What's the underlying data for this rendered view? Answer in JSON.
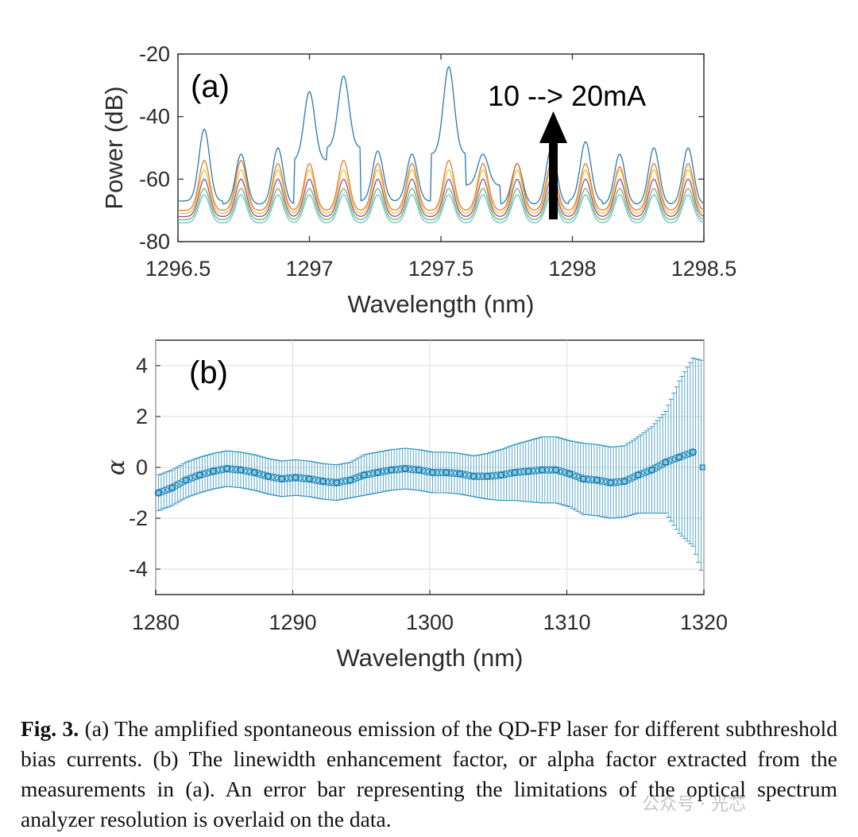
{
  "chart_data": [
    {
      "type": "line",
      "panel_label": "(a)",
      "annotation": "10 --> 20mA",
      "xlabel": "Wavelength (nm)",
      "ylabel": "Power (dB)",
      "xlim": [
        1296.5,
        1298.5
      ],
      "ylim": [
        -80,
        -20
      ],
      "xticks": [
        1296.5,
        1297,
        1297.5,
        1298,
        1298.5
      ],
      "xtick_labels": [
        "1296.5",
        "1297",
        "1297.5",
        "1298",
        "1298.5"
      ],
      "yticks": [
        -20,
        -40,
        -60,
        -80
      ],
      "ytick_labels": [
        "-20",
        "-40",
        "-60",
        "-80"
      ],
      "grid": false,
      "mode_peaks_nm": [
        1296.6,
        1296.74,
        1296.88,
        1297.0,
        1297.13,
        1297.26,
        1297.39,
        1297.53,
        1297.66,
        1297.79,
        1297.92,
        1298.05,
        1298.18,
        1298.31,
        1298.44
      ],
      "series": [
        {
          "color": "#2a78b4",
          "peak": [
            -44,
            -52,
            -50,
            -32,
            -27,
            -51,
            -52,
            -24,
            -52,
            -55,
            -50,
            -48,
            -52,
            -50,
            -50
          ],
          "valley": [
            -67,
            -68,
            -68,
            -54,
            -50,
            -67,
            -67,
            -52,
            -62,
            -68,
            -68,
            -67,
            -68,
            -68,
            -68
          ]
        },
        {
          "color": "#e07b2e",
          "peak": [
            -54,
            -54,
            -55,
            -55,
            -54,
            -55,
            -55,
            -54,
            -55,
            -55,
            -55,
            -55,
            -56,
            -55,
            -55
          ],
          "valley": [
            -70,
            -70,
            -70,
            -70,
            -70,
            -70,
            -70,
            -70,
            -70,
            -70,
            -70,
            -70,
            -70,
            -70,
            -70
          ]
        },
        {
          "color": "#e8c13a",
          "peak": [
            -57,
            -57,
            -57,
            -57,
            -57,
            -57,
            -57,
            -57,
            -57,
            -57,
            -57,
            -57,
            -57,
            -57,
            -57
          ],
          "valley": [
            -71,
            -71,
            -71,
            -71,
            -71,
            -71,
            -71,
            -71,
            -71,
            -71,
            -71,
            -71,
            -71,
            -71,
            -71
          ]
        },
        {
          "color": "#8a4ea3",
          "peak": [
            -60,
            -60,
            -60,
            -60,
            -60,
            -60,
            -60,
            -60,
            -60,
            -60,
            -60,
            -60,
            -60,
            -60,
            -60
          ],
          "valley": [
            -72,
            -72,
            -72,
            -72,
            -72,
            -72,
            -72,
            -72,
            -72,
            -72,
            -72,
            -72,
            -72,
            -72,
            -72
          ]
        },
        {
          "color": "#7fb34a",
          "peak": [
            -63,
            -63,
            -63,
            -63,
            -63,
            -63,
            -63,
            -63,
            -63,
            -63,
            -63,
            -63,
            -63,
            -63,
            -63
          ],
          "valley": [
            -73,
            -73,
            -73,
            -73,
            -73,
            -73,
            -73,
            -73,
            -73,
            -73,
            -73,
            -73,
            -73,
            -73,
            -73
          ]
        },
        {
          "color": "#5fc3de",
          "peak": [
            -65,
            -65,
            -65,
            -65,
            -65,
            -65,
            -65,
            -65,
            -65,
            -65,
            -65,
            -65,
            -65,
            -65,
            -65
          ],
          "valley": [
            -74,
            -74,
            -74,
            -74,
            -74,
            -74,
            -74,
            -74,
            -74,
            -74,
            -74,
            -74,
            -74,
            -74,
            -74
          ]
        }
      ]
    },
    {
      "type": "scatter",
      "panel_label": "(b)",
      "xlabel": "Wavelength (nm)",
      "ylabel": "α",
      "xlim": [
        1280,
        1320
      ],
      "ylim": [
        -5,
        5
      ],
      "xticks": [
        1280,
        1290,
        1300,
        1310,
        1320
      ],
      "xtick_labels": [
        "1280",
        "1290",
        "1300",
        "1310",
        "1320"
      ],
      "yticks": [
        4,
        2,
        0,
        -2,
        -4
      ],
      "ytick_labels": [
        "4",
        "2",
        "0",
        "-2",
        "-4"
      ],
      "grid": true,
      "color": "#2a8fbd",
      "x": [
        1280.2,
        1281.2,
        1282.2,
        1283.2,
        1284.2,
        1285.2,
        1286.2,
        1287.2,
        1288.2,
        1289.2,
        1290.2,
        1291.2,
        1292.2,
        1293.2,
        1294.2,
        1295.2,
        1296.2,
        1297.2,
        1298.2,
        1299.2,
        1300.2,
        1301.2,
        1302.2,
        1303.2,
        1304.2,
        1305.2,
        1306.2,
        1307.2,
        1308.2,
        1309.2,
        1310.2,
        1311.2,
        1312.2,
        1313.2,
        1314.2,
        1315.2,
        1316.2,
        1317.2,
        1318.2,
        1319.2,
        1319.9
      ],
      "y": [
        -1.0,
        -0.8,
        -0.5,
        -0.3,
        -0.15,
        -0.05,
        -0.1,
        -0.2,
        -0.35,
        -0.45,
        -0.4,
        -0.45,
        -0.55,
        -0.6,
        -0.5,
        -0.3,
        -0.2,
        -0.1,
        -0.05,
        -0.1,
        -0.2,
        -0.2,
        -0.25,
        -0.35,
        -0.35,
        -0.3,
        -0.2,
        -0.15,
        -0.1,
        -0.1,
        -0.25,
        -0.45,
        -0.5,
        -0.6,
        -0.55,
        -0.3,
        -0.1,
        0.2,
        0.4,
        0.6,
        0.0
      ],
      "err": [
        0.7,
        0.7,
        0.7,
        0.7,
        0.7,
        0.7,
        0.7,
        0.7,
        0.7,
        0.7,
        0.7,
        0.7,
        0.7,
        0.7,
        0.7,
        0.8,
        0.8,
        0.8,
        0.8,
        0.8,
        0.8,
        0.8,
        0.8,
        0.8,
        0.9,
        1.0,
        1.1,
        1.2,
        1.3,
        1.3,
        1.3,
        1.4,
        1.4,
        1.4,
        1.4,
        1.5,
        1.7,
        2.0,
        3.0,
        3.7,
        4.2
      ]
    }
  ],
  "caption": {
    "label": "Fig. 3.",
    "text": "(a) The amplified spontaneous emission of the QD-FP laser for different subthreshold bias currents. (b) The linewidth enhancement factor, or alpha factor extracted from the measurements in (a). An error bar representing the limitations of the optical spectrum analyzer resolution is overlaid on the data."
  },
  "watermark": "公众号 · 光芯"
}
